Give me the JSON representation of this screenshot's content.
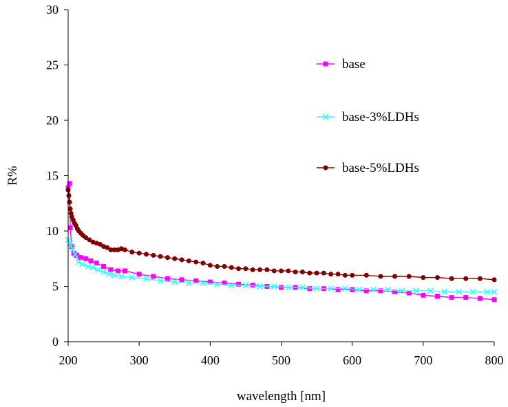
{
  "chart_data": {
    "type": "line",
    "xlabel": "wavelength [nm]",
    "ylabel": "R%",
    "xlim": [
      200,
      800
    ],
    "ylim": [
      0,
      30
    ],
    "xticks": [
      "200",
      "300",
      "400",
      "500",
      "600",
      "700",
      "800"
    ],
    "yticks": [
      "0",
      "5",
      "10",
      "15",
      "20",
      "25",
      "30"
    ],
    "grid": false,
    "legend_position": "right",
    "series": [
      {
        "name": "base",
        "color": "#ff00ff",
        "marker": "square",
        "x": [
          200,
          202,
          203,
          205,
          208,
          212,
          218,
          225,
          232,
          240,
          250,
          260,
          270,
          280,
          300,
          320,
          340,
          360,
          380,
          400,
          420,
          440,
          460,
          480,
          500,
          520,
          540,
          560,
          580,
          600,
          620,
          640,
          660,
          680,
          700,
          720,
          740,
          760,
          780,
          800
        ],
        "y": [
          13.9,
          14.3,
          10.3,
          8.6,
          8.0,
          7.8,
          7.6,
          7.5,
          7.3,
          7.1,
          6.8,
          6.5,
          6.4,
          6.4,
          6.1,
          5.9,
          5.7,
          5.6,
          5.5,
          5.4,
          5.3,
          5.2,
          5.1,
          5.0,
          4.9,
          4.9,
          4.8,
          4.8,
          4.7,
          4.7,
          4.6,
          4.6,
          4.5,
          4.4,
          4.2,
          4.1,
          4.0,
          4.0,
          3.9,
          3.8
        ]
      },
      {
        "name": "base-3%LDHs",
        "color": "#33ffff",
        "marker": "x",
        "x": [
          200,
          203,
          206,
          210,
          215,
          220,
          228,
          235,
          242,
          250,
          258,
          265,
          275,
          290,
          310,
          330,
          350,
          370,
          390,
          410,
          430,
          450,
          470,
          490,
          510,
          530,
          550,
          570,
          590,
          610,
          630,
          650,
          670,
          690,
          710,
          730,
          750,
          770,
          790,
          800
        ],
        "y": [
          9.2,
          8.9,
          8.4,
          7.9,
          7.2,
          7.0,
          6.8,
          6.7,
          6.5,
          6.3,
          6.1,
          6.0,
          5.9,
          5.8,
          5.7,
          5.5,
          5.4,
          5.3,
          5.3,
          5.2,
          5.1,
          5.1,
          5.0,
          5.0,
          4.9,
          4.9,
          4.8,
          4.8,
          4.8,
          4.7,
          4.7,
          4.7,
          4.6,
          4.6,
          4.6,
          4.5,
          4.5,
          4.5,
          4.5,
          4.5
        ]
      },
      {
        "name": "base-5%LDHs",
        "color": "#800000",
        "marker": "circle",
        "x": [
          200,
          201,
          202,
          203,
          204,
          205,
          207,
          209,
          211,
          213,
          215,
          218,
          221,
          225,
          230,
          235,
          240,
          245,
          250,
          255,
          260,
          265,
          270,
          275,
          280,
          290,
          300,
          310,
          320,
          330,
          340,
          350,
          360,
          370,
          380,
          390,
          400,
          410,
          420,
          430,
          440,
          450,
          460,
          470,
          480,
          490,
          500,
          510,
          520,
          530,
          540,
          550,
          560,
          570,
          580,
          590,
          600,
          620,
          640,
          660,
          680,
          700,
          720,
          740,
          760,
          780,
          800
        ],
        "y": [
          13.7,
          13.2,
          12.6,
          12.0,
          11.6,
          11.3,
          11.0,
          10.7,
          10.5,
          10.2,
          10.0,
          9.8,
          9.6,
          9.4,
          9.2,
          9.0,
          8.9,
          8.8,
          8.6,
          8.5,
          8.3,
          8.3,
          8.3,
          8.4,
          8.3,
          8.1,
          8.0,
          7.9,
          7.8,
          7.7,
          7.6,
          7.5,
          7.4,
          7.3,
          7.2,
          7.1,
          6.9,
          6.8,
          6.8,
          6.7,
          6.6,
          6.6,
          6.5,
          6.5,
          6.5,
          6.4,
          6.4,
          6.4,
          6.3,
          6.3,
          6.2,
          6.2,
          6.2,
          6.1,
          6.1,
          6.0,
          6.0,
          6.0,
          5.9,
          5.9,
          5.9,
          5.8,
          5.8,
          5.7,
          5.7,
          5.7,
          5.6
        ]
      }
    ]
  }
}
